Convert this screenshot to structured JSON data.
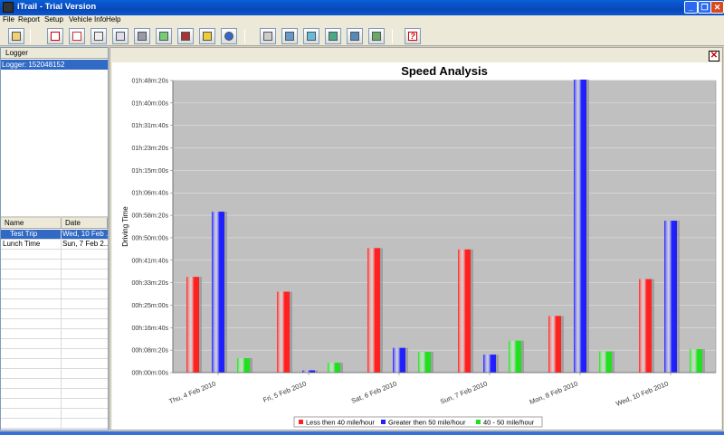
{
  "window": {
    "title": "iTrail - Trial Version",
    "minimize": "_",
    "maximize": "❐",
    "close": "✕"
  },
  "menu": [
    "File",
    "Report",
    "Setup",
    "Vehicle Info",
    "Help"
  ],
  "toolbar_icons": [
    "wizard-icon",
    "report-icon",
    "pdf-report-icon",
    "html-report-icon",
    "document-icon",
    "print-icon",
    "map-icon",
    "logger-icon",
    "colors-icon",
    "globe-icon",
    "export-icon",
    "speed-chart-icon",
    "stop-chart-icon",
    "route-icon",
    "settings-icon",
    "upload-icon",
    "help-icon"
  ],
  "help_glyph": "?",
  "logger": {
    "header": "Logger",
    "selected": "Logger: 152048152"
  },
  "trips": {
    "col_name": "Name",
    "col_date": "Date",
    "rows": [
      {
        "name": "Test Trip",
        "date": "Wed, 10 Feb ...",
        "selected": true
      },
      {
        "name": "Lunch Time",
        "date": "Sun, 7 Feb 2...",
        "selected": false
      }
    ]
  },
  "chart_close": "✕",
  "chart_data": {
    "type": "bar",
    "title": "Speed Analysis",
    "ylabel": "Driving Time",
    "xlabel": "",
    "categories": [
      "Thu, 4 Feb 2010",
      "Fri, 5 Feb 2010",
      "Sat, 6 Feb 2010",
      "Sun, 7 Feb 2010",
      "Mon, 8 Feb 2010",
      "Wed, 10 Feb 2010"
    ],
    "y_ticks": [
      "00h:00m:00s",
      "00h:08m:20s",
      "00h:16m:40s",
      "00h:25m:00s",
      "00h:33m:20s",
      "00h:41m:40s",
      "00h:50m:00s",
      "00h:58m:20s",
      "01h:06m:40s",
      "01h:15m:00s",
      "01h:23m:20s",
      "01h:31m:40s",
      "01h:40m:00s",
      "01h:48m:20s"
    ],
    "ylim": [
      0,
      6500
    ],
    "ylim_units": "seconds",
    "series": [
      {
        "name": "Less then 40 mile/hour",
        "color": "#ff2020",
        "values": [
          2130,
          1800,
          2770,
          2740,
          1260,
          2080
        ]
      },
      {
        "name": "Greater then 50 mile/hour",
        "color": "#2020ff",
        "values": [
          3580,
          50,
          550,
          400,
          6520,
          3380
        ]
      },
      {
        "name": "40 - 50 mile/hour",
        "color": "#20e020",
        "values": [
          320,
          220,
          460,
          710,
          470,
          520
        ]
      }
    ],
    "grid": true,
    "legend": "bottom"
  }
}
